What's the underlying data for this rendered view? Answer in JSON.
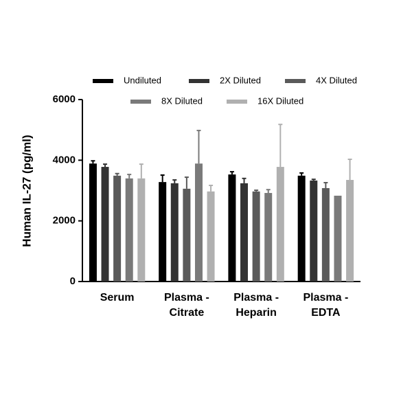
{
  "chart_data": {
    "type": "bar",
    "y_label": "Human IL-27 (pg/ml)",
    "categories": [
      "Serum",
      "Plasma -\nCitrate",
      "Plasma -\nHeparin",
      "Plasma -\nEDTA"
    ],
    "series": [
      {
        "name": "Undiluted",
        "color": "#000000",
        "values": [
          3890,
          3280,
          3530,
          3490
        ],
        "errors": [
          90,
          230,
          90,
          90
        ]
      },
      {
        "name": "2X Diluted",
        "color": "#333333",
        "values": [
          3780,
          3240,
          3240,
          3330
        ],
        "errors": [
          90,
          110,
          160,
          40
        ]
      },
      {
        "name": "4X Diluted",
        "color": "#5a5a5a",
        "values": [
          3490,
          3060,
          2970,
          3080
        ],
        "errors": [
          70,
          380,
          40,
          180
        ]
      },
      {
        "name": "8X Diluted",
        "color": "#7a7a7a",
        "values": [
          3400,
          3890,
          2920,
          2830
        ],
        "errors": [
          130,
          1090,
          110,
          null
        ]
      },
      {
        "name": "16X Diluted",
        "color": "#b0b0b0",
        "values": [
          3400,
          2970,
          3780,
          3350
        ],
        "errors": [
          470,
          200,
          1400,
          680
        ]
      }
    ],
    "ylim": [
      0,
      6000
    ],
    "yticks": [
      0,
      2000,
      4000,
      6000
    ]
  }
}
